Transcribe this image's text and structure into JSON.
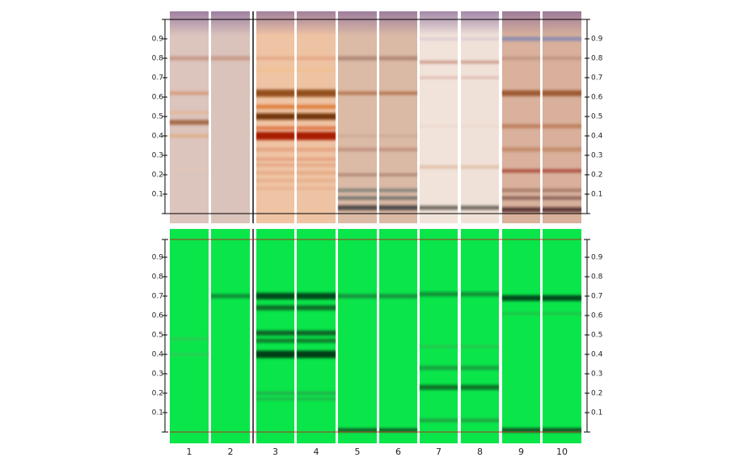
{
  "rf_axis": {
    "ticks": [
      0.1,
      0.2,
      0.3,
      0.4,
      0.5,
      0.6,
      0.7,
      0.8,
      0.9
    ]
  },
  "lanes": [
    "1",
    "2",
    "3",
    "4",
    "5",
    "6",
    "7",
    "8",
    "9",
    "10"
  ]
}
